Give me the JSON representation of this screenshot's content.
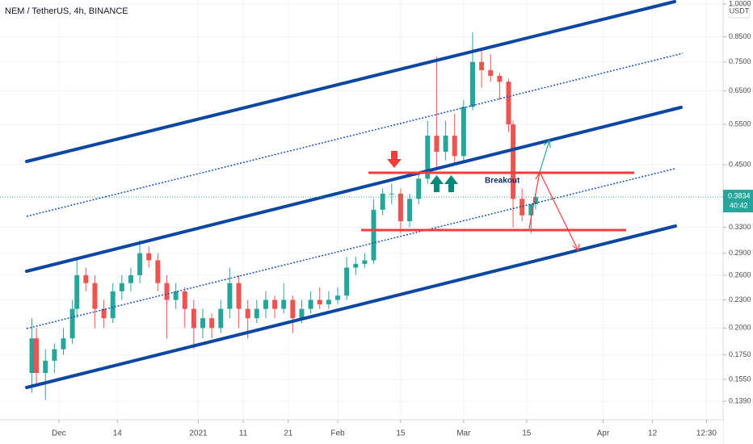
{
  "chart_data": {
    "type": "candlestick",
    "title": "NEM / TetherUS, 4h, BINANCE",
    "currency": "USDT",
    "countdown": "40:42",
    "annotation": "Breakout",
    "log_scale": true,
    "grid": true,
    "up_color": "#26a69a",
    "down_color": "#ef5350",
    "xlim": [
      -13.1,
      147.7
    ],
    "xticks": [
      {
        "value": 0,
        "label": "Dec"
      },
      {
        "value": 13,
        "label": "14"
      },
      {
        "value": 31,
        "label": "2021"
      },
      {
        "value": 41,
        "label": "11"
      },
      {
        "value": 51,
        "label": "21"
      },
      {
        "value": 62,
        "label": "Feb"
      },
      {
        "value": 76,
        "label": "15"
      },
      {
        "value": 90,
        "label": "Mar"
      },
      {
        "value": 104,
        "label": "15"
      },
      {
        "value": 121,
        "label": "Apr"
      },
      {
        "value": 132,
        "label": "12"
      },
      {
        "value": 144,
        "label": "12:30"
      }
    ],
    "ylim": [
      0.1268,
      1.0203
    ],
    "yticks": [
      {
        "value": 1,
        "label": "1.0000"
      },
      {
        "value": 0.85,
        "label": "0.8500"
      },
      {
        "value": 0.75,
        "label": "0.7500"
      },
      {
        "value": 0.65,
        "label": "0.6500"
      },
      {
        "value": 0.55,
        "label": "0.5500"
      },
      {
        "value": 0.45,
        "label": "0.4500"
      },
      {
        "value": 0.33,
        "label": "0.3300"
      },
      {
        "value": 0.29,
        "label": "0.2900"
      },
      {
        "value": 0.26,
        "label": "0.2600"
      },
      {
        "value": 0.23,
        "label": "0.2300"
      },
      {
        "value": 0.2,
        "label": "0.2000"
      },
      {
        "value": 0.175,
        "label": "0.1750"
      },
      {
        "value": 0.155,
        "label": "0.1550"
      },
      {
        "value": 0.139,
        "label": "0.1390"
      }
    ],
    "x": [
      -6,
      -5,
      -3,
      -1,
      1,
      3,
      4,
      6,
      8,
      10,
      12,
      14,
      16,
      18,
      20,
      22,
      24,
      26,
      28,
      30,
      32,
      34,
      36,
      38,
      40,
      42,
      44,
      46,
      48,
      50,
      52,
      54,
      56,
      58,
      60,
      62,
      64,
      66,
      68,
      70,
      72,
      74,
      76,
      78,
      80,
      82,
      84,
      86,
      88,
      90,
      92,
      94,
      96,
      98,
      100,
      101,
      103,
      105,
      106
    ],
    "open": [
      0.16,
      0.19,
      0.16,
      0.17,
      0.18,
      0.19,
      0.22,
      0.26,
      0.25,
      0.22,
      0.21,
      0.24,
      0.25,
      0.26,
      0.29,
      0.28,
      0.25,
      0.23,
      0.24,
      0.22,
      0.2,
      0.21,
      0.2,
      0.22,
      0.25,
      0.22,
      0.21,
      0.22,
      0.23,
      0.22,
      0.23,
      0.21,
      0.22,
      0.23,
      0.225,
      0.23,
      0.235,
      0.27,
      0.275,
      0.28,
      0.36,
      0.39,
      0.39,
      0.34,
      0.38,
      0.42,
      0.52,
      0.48,
      0.52,
      0.47,
      0.6,
      0.75,
      0.72,
      0.7,
      0.68,
      0.55,
      0.38,
      0.35,
      0.37
    ],
    "high": [
      0.21,
      0.2,
      0.18,
      0.185,
      0.2,
      0.23,
      0.28,
      0.27,
      0.26,
      0.23,
      0.25,
      0.26,
      0.27,
      0.31,
      0.3,
      0.29,
      0.26,
      0.25,
      0.245,
      0.23,
      0.22,
      0.215,
      0.23,
      0.27,
      0.26,
      0.23,
      0.23,
      0.24,
      0.235,
      0.25,
      0.235,
      0.23,
      0.24,
      0.245,
      0.24,
      0.245,
      0.285,
      0.285,
      0.29,
      0.38,
      0.4,
      0.41,
      0.4,
      0.39,
      0.43,
      0.56,
      0.77,
      0.56,
      0.58,
      0.62,
      0.87,
      0.8,
      0.78,
      0.71,
      0.69,
      0.56,
      0.4,
      0.37,
      0.39
    ],
    "low": [
      0.145,
      0.15,
      0.14,
      0.16,
      0.175,
      0.185,
      0.21,
      0.24,
      0.2,
      0.2,
      0.205,
      0.23,
      0.24,
      0.25,
      0.27,
      0.24,
      0.19,
      0.22,
      0.2,
      0.18,
      0.19,
      0.19,
      0.195,
      0.21,
      0.2,
      0.19,
      0.205,
      0.21,
      0.21,
      0.215,
      0.195,
      0.205,
      0.215,
      0.22,
      0.22,
      0.225,
      0.23,
      0.26,
      0.27,
      0.275,
      0.35,
      0.37,
      0.32,
      0.33,
      0.37,
      0.41,
      0.44,
      0.46,
      0.45,
      0.46,
      0.59,
      0.66,
      0.68,
      0.62,
      0.53,
      0.33,
      0.34,
      0.32,
      0.36
    ],
    "close": [
      0.19,
      0.16,
      0.17,
      0.18,
      0.19,
      0.22,
      0.26,
      0.25,
      0.22,
      0.21,
      0.24,
      0.25,
      0.26,
      0.29,
      0.28,
      0.25,
      0.23,
      0.24,
      0.22,
      0.2,
      0.21,
      0.2,
      0.22,
      0.25,
      0.22,
      0.21,
      0.22,
      0.23,
      0.22,
      0.23,
      0.21,
      0.22,
      0.23,
      0.225,
      0.23,
      0.235,
      0.27,
      0.275,
      0.28,
      0.36,
      0.39,
      0.39,
      0.34,
      0.38,
      0.42,
      0.52,
      0.48,
      0.52,
      0.47,
      0.6,
      0.75,
      0.72,
      0.7,
      0.68,
      0.55,
      0.38,
      0.35,
      0.37,
      0.3834
    ]
  }
}
